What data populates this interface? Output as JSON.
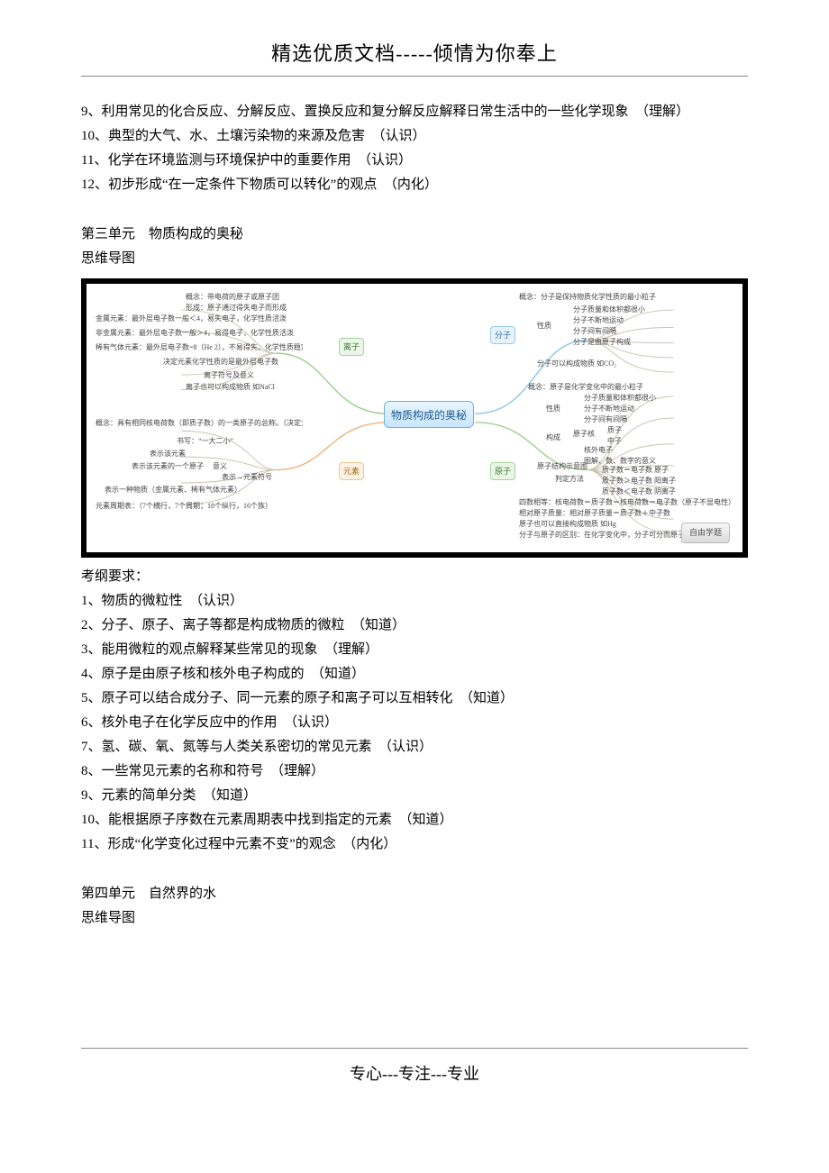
{
  "header": "精选优质文档-----倾情为你奉上",
  "footer": "专心---专注---专业",
  "top_list": [
    "9、利用常见的化合反应、分解反应、置换反应和复分解反应解释日常生活中的一些化学现象　（理解）",
    "10、典型的大气、水、土壤污染物的来源及危害　（认识）",
    "11、化学在环境监测与环境保护中的重要作用　（认识）",
    "12、初步形成“在一定条件下物质可以转化”的观点　（内化）"
  ],
  "unit3": {
    "title": "第三单元　物质构成的奥秘",
    "mindmap_label": "思维导图",
    "center": "物质构成的奥秘",
    "branch_left_top": "离子",
    "branch_left_bottom": "元素",
    "branch_right_top": "分子",
    "branch_right_bottom": "原子",
    "button": "自由学题",
    "left_notes": [
      "概念：带电荷的原子或原子团",
      "形成：原子通过得失电子而形成",
      "金属元素：最外层电子数一般＜4，易失电子，化学性质活泼",
      "非金属元素：最外层电子数一般＞4，易得电子，化学性质活泼",
      "稀有气体元素：最外层电子数=8（He 2），不易得失，化学性质稳定",
      "决定元素化学性质的是最外层电子数",
      "离子符号及意义",
      "离子也可以构成物质 如NaCl",
      "概念：具有相同核电荷数（即质子数）的一类原子的总称。（决定元素种类的是质子数）",
      "书写：“一大二小”",
      "表示该元素",
      "表示该元素的一个原子",
      "意义",
      "表示→元素符号",
      "表示一种物质（金属元素、稀有气体元素）",
      "元素周期表：（7个横行，7个周期；18个纵行，16个族）"
    ],
    "right_notes": [
      "概念：分子是保持物质化学性质的最小粒子",
      "分子质量和体积都很小",
      "分子不断地运动",
      "分子间有间隔",
      "分子是由原子构成",
      "性质",
      "分子可以构成物质 如CO₂",
      "概念：原子是化学变化中的最小粒子",
      "分子质量和体积都很小",
      "分子不断地运动",
      "分子间有间隔",
      "性质",
      "质子",
      "原子核",
      "中子",
      "构成",
      "核外电子",
      "图解、数、数字的意义",
      "原子结构示意图",
      "质子数＝电子数  原子",
      "判定方法",
      "质子数＞电子数 阳离子",
      "质子数＜电子数 阴离子",
      "四数相等：核电荷数＝质子数＝核电荷数＝电子数（原子不显电性）",
      "相对原子质量：相对原子质量＝质子数＋中子数",
      "原子也可以直接构成物质 如Hg",
      "分子与原子的区别：在化学变化中，分子可分而原子不可分"
    ],
    "exam_label": "考纲要求：",
    "exam_list": [
      "1、物质的微粒性　（认识）",
      "2、分子、原子、离子等都是构成物质的微粒　（知道）",
      "3、能用微粒的观点解释某些常见的现象　（理解）",
      "4、原子是由原子核和核外电子构成的　（知道）",
      "5、原子可以结合成分子、同一元素的原子和离子可以互相转化　（知道）",
      "6、核外电子在化学反应中的作用　（认识）",
      "7、氢、碳、氧、氮等与人类关系密切的常见元素　（认识）",
      "8、一些常见元素的名称和符号　（理解）",
      "9、元素的简单分类　（知道）",
      "10、能根据原子序数在元素周期表中找到指定的元素　（知道）",
      "11、形成“化学变化过程中元素不变”的观念　（内化）"
    ]
  },
  "unit4": {
    "title": "第四单元　自然界的水",
    "mindmap_label": "思维导图"
  },
  "colors": {
    "curve_green": "#9fd08f",
    "curve_blue": "#8fc7e8",
    "curve_orange": "#f0b27a",
    "curve_gray": "#c9c4b0"
  }
}
